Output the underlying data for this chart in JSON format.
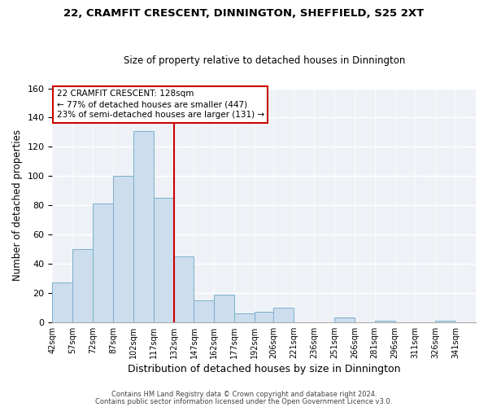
{
  "title": "22, CRAMFIT CRESCENT, DINNINGTON, SHEFFIELD, S25 2XT",
  "subtitle": "Size of property relative to detached houses in Dinnington",
  "xlabel": "Distribution of detached houses by size in Dinnington",
  "ylabel": "Number of detached properties",
  "footer_line1": "Contains HM Land Registry data © Crown copyright and database right 2024.",
  "footer_line2": "Contains public sector information licensed under the Open Government Licence v3.0.",
  "bin_labels": [
    "42sqm",
    "57sqm",
    "72sqm",
    "87sqm",
    "102sqm",
    "117sqm",
    "132sqm",
    "147sqm",
    "162sqm",
    "177sqm",
    "192sqm",
    "206sqm",
    "221sqm",
    "236sqm",
    "251sqm",
    "266sqm",
    "281sqm",
    "296sqm",
    "311sqm",
    "326sqm",
    "341sqm"
  ],
  "bar_heights": [
    27,
    50,
    81,
    100,
    131,
    85,
    45,
    15,
    19,
    6,
    7,
    10,
    0,
    0,
    3,
    0,
    1,
    0,
    0,
    1,
    0
  ],
  "bar_color": "#ccdded",
  "bar_edge_color": "#7ab0cc",
  "highlight_line_color": "#cc0000",
  "annotation_title": "22 CRAMFIT CRESCENT: 128sqm",
  "annotation_line1": "← 77% of detached houses are smaller (447)",
  "annotation_line2": "23% of semi-detached houses are larger (131) →",
  "annotation_box_edge": "#cc0000",
  "ylim": [
    0,
    160
  ],
  "bin_edges": [
    42,
    57,
    72,
    87,
    102,
    117,
    132,
    147,
    162,
    177,
    192,
    206,
    221,
    236,
    251,
    266,
    281,
    296,
    311,
    326,
    341,
    356
  ]
}
